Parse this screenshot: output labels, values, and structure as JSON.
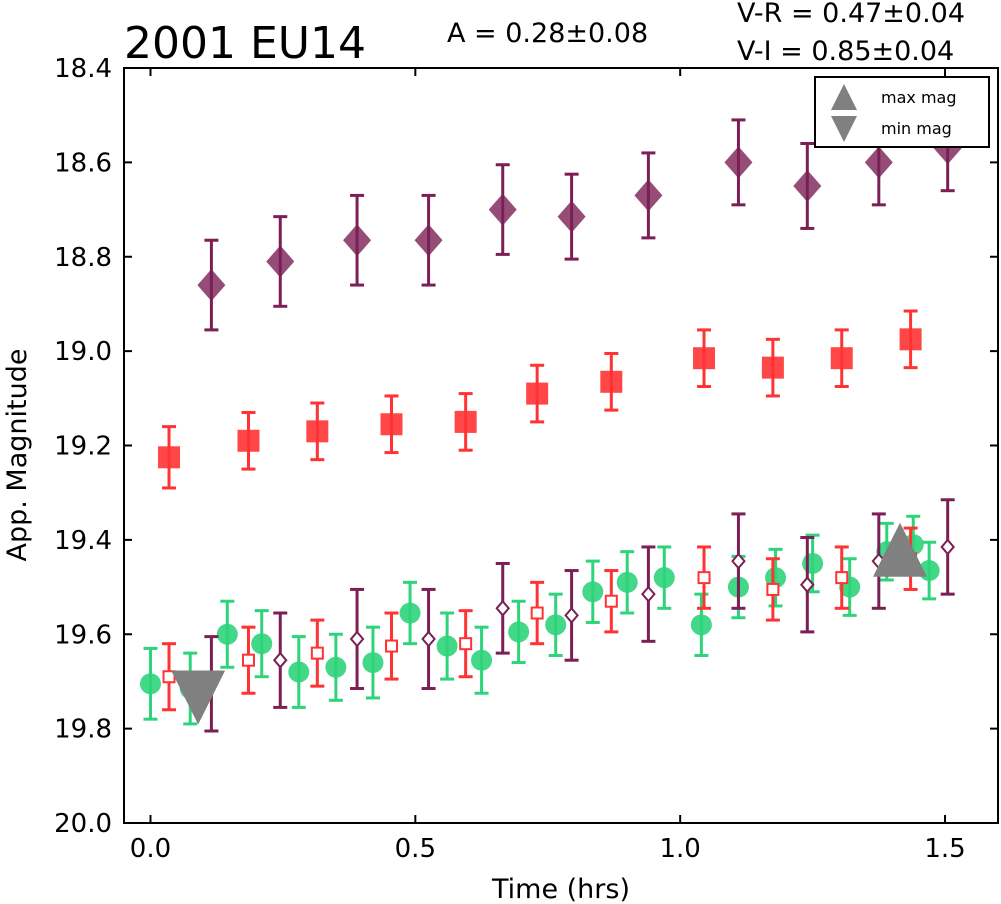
{
  "chart_data": {
    "type": "scatter",
    "title": "2001 EU14",
    "amplitude_text": "A  = 0.28±0.08",
    "color_text_1": "V-R = 0.47±0.04",
    "color_text_2": "V-I  = 0.85±0.04",
    "xlabel": "Time (hrs)",
    "ylabel": "App. Magnitude",
    "xlim": [
      -0.05,
      1.6
    ],
    "ylim": [
      20.0,
      18.4
    ],
    "y_inverted": true,
    "grid": false,
    "xticks": [
      0.0,
      0.5,
      1.0,
      1.5
    ],
    "xtick_labels": [
      "0.0",
      "0.5",
      "1.0",
      "1.5"
    ],
    "yticks": [
      18.4,
      18.6,
      18.8,
      19.0,
      19.2,
      19.4,
      19.6,
      19.8,
      20.0
    ],
    "ytick_labels": [
      "18.4",
      "18.6",
      "18.8",
      "19.0",
      "19.2",
      "19.4",
      "19.6",
      "19.8",
      "20.0"
    ],
    "legend": {
      "placement": "top-right",
      "entries": [
        {
          "label": "max mag",
          "marker": "triangle-up",
          "color": "#808080"
        },
        {
          "label": "min mag",
          "marker": "triangle-down",
          "color": "#808080"
        }
      ]
    },
    "series": [
      {
        "marker": "diamond-filled",
        "color": "#7b1f55",
        "x": [
          0.115,
          0.245,
          0.39,
          0.525,
          0.665,
          0.795,
          0.94,
          1.11,
          1.24,
          1.375,
          1.505
        ],
        "y": [
          18.86,
          18.81,
          18.765,
          18.765,
          18.7,
          18.715,
          18.67,
          18.6,
          18.65,
          18.6,
          18.57
        ],
        "err": [
          0.095,
          0.095,
          0.095,
          0.095,
          0.095,
          0.09,
          0.09,
          0.09,
          0.09,
          0.09,
          0.09
        ]
      },
      {
        "marker": "square-filled",
        "color": "#ff3333",
        "x": [
          0.035,
          0.185,
          0.315,
          0.455,
          0.595,
          0.73,
          0.87,
          1.045,
          1.175,
          1.305,
          1.435
        ],
        "y": [
          19.225,
          19.19,
          19.17,
          19.155,
          19.15,
          19.09,
          19.065,
          19.015,
          19.035,
          19.015,
          18.975
        ],
        "err": [
          0.065,
          0.06,
          0.06,
          0.06,
          0.06,
          0.06,
          0.06,
          0.06,
          0.06,
          0.06,
          0.06
        ]
      },
      {
        "marker": "circle-filled",
        "color": "#2ed47a",
        "x": [
          0.0,
          0.075,
          0.145,
          0.21,
          0.28,
          0.35,
          0.42,
          0.49,
          0.56,
          0.625,
          0.695,
          0.765,
          0.835,
          0.9,
          0.97,
          1.04,
          1.11,
          1.18,
          1.25,
          1.32,
          1.39,
          1.44,
          1.47
        ],
        "y": [
          19.705,
          19.715,
          19.6,
          19.62,
          19.68,
          19.67,
          19.66,
          19.555,
          19.625,
          19.655,
          19.595,
          19.58,
          19.51,
          19.49,
          19.48,
          19.58,
          19.5,
          19.48,
          19.45,
          19.5,
          19.425,
          19.41,
          19.465
        ],
        "err": [
          0.075,
          0.075,
          0.07,
          0.07,
          0.075,
          0.07,
          0.075,
          0.065,
          0.07,
          0.07,
          0.065,
          0.065,
          0.065,
          0.065,
          0.065,
          0.065,
          0.065,
          0.06,
          0.06,
          0.06,
          0.06,
          0.06,
          0.06
        ]
      },
      {
        "marker": "square-open",
        "color": "#ff3333",
        "x": [
          0.035,
          0.185,
          0.315,
          0.455,
          0.595,
          0.73,
          0.87,
          1.045,
          1.175,
          1.305,
          1.435
        ],
        "y": [
          19.69,
          19.655,
          19.64,
          19.625,
          19.62,
          19.555,
          19.53,
          19.48,
          19.505,
          19.48,
          19.44
        ],
        "err": [
          0.07,
          0.07,
          0.07,
          0.07,
          0.07,
          0.065,
          0.065,
          0.065,
          0.065,
          0.065,
          0.065
        ]
      },
      {
        "marker": "diamond-open",
        "color": "#7b1f55",
        "x": [
          0.115,
          0.245,
          0.39,
          0.525,
          0.665,
          0.795,
          0.94,
          1.11,
          1.24,
          1.375,
          1.505
        ],
        "y": [
          19.705,
          19.655,
          19.61,
          19.61,
          19.545,
          19.56,
          19.515,
          19.445,
          19.495,
          19.445,
          19.415
        ],
        "err": [
          0.1,
          0.1,
          0.105,
          0.105,
          0.095,
          0.095,
          0.1,
          0.1,
          0.1,
          0.1,
          0.1
        ]
      }
    ],
    "extrema": [
      {
        "type": "min mag",
        "marker": "triangle-down",
        "color": "#808080",
        "x": 0.09,
        "y": 19.715
      },
      {
        "type": "max mag",
        "marker": "triangle-up",
        "color": "#808080",
        "x": 1.415,
        "y": 19.44
      }
    ]
  }
}
